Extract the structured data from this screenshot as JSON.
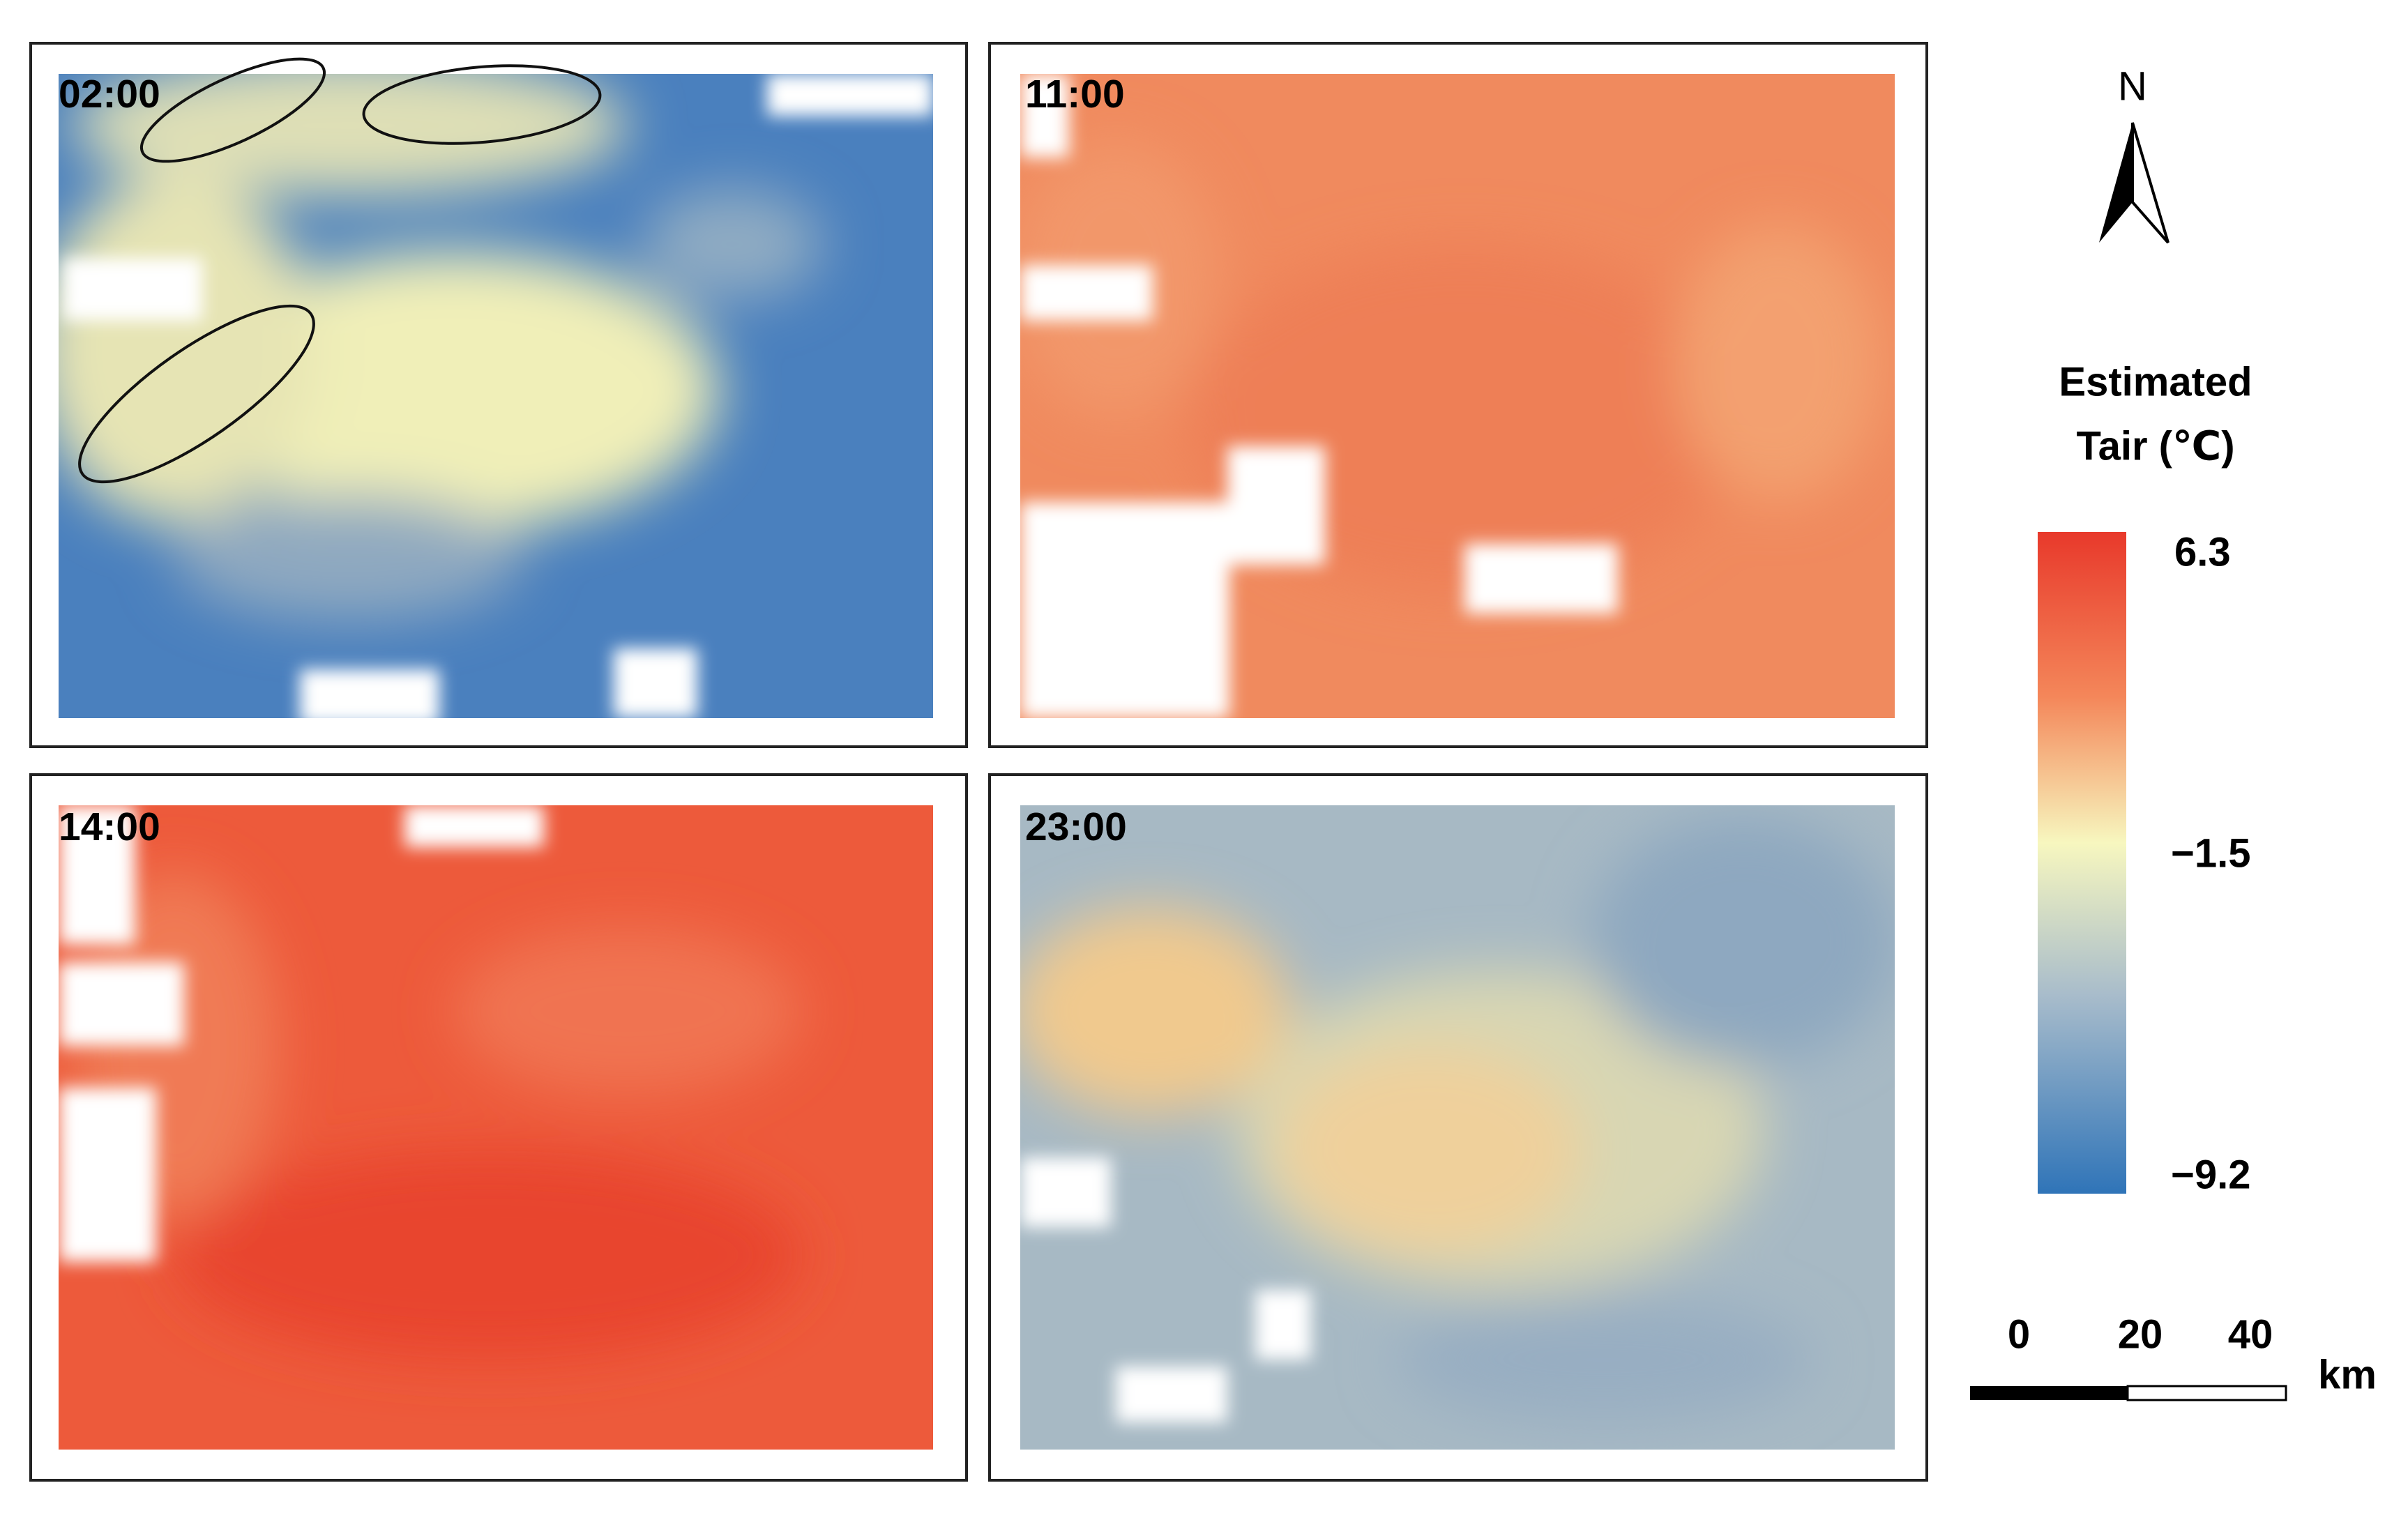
{
  "panels": [
    {
      "label": "02:00"
    },
    {
      "label": "11:00"
    },
    {
      "label": "14:00"
    },
    {
      "label": "23:00"
    }
  ],
  "north": "N",
  "legend": {
    "title_lines": [
      "Estimated",
      "Tair (℃)"
    ],
    "ticks": [
      "6.3",
      "−1.5",
      "−9.2"
    ]
  },
  "scale_bar": {
    "labels": [
      "0",
      "20",
      "40"
    ],
    "unit": "km"
  }
}
